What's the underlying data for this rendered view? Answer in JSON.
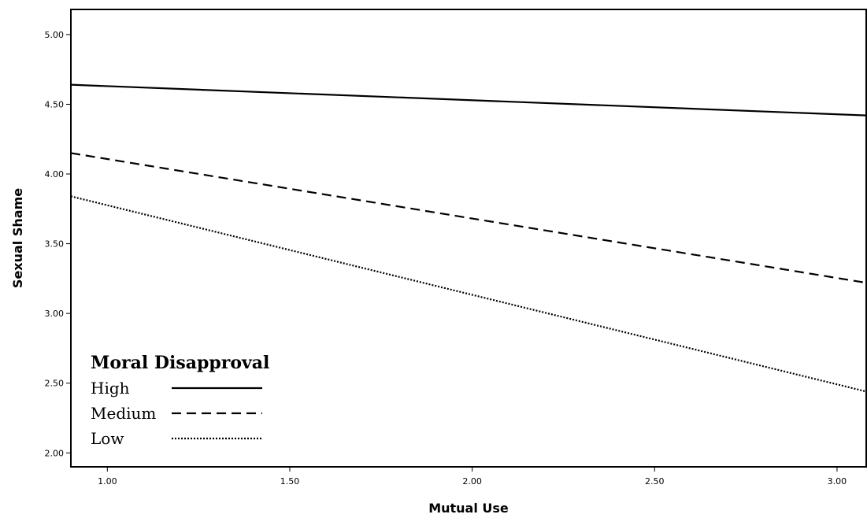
{
  "chart_data": {
    "type": "line",
    "title": "",
    "xlabel": "Mutual Use",
    "ylabel": "Sexual Shame",
    "xlim": [
      0.9,
      3.08
    ],
    "ylim": [
      1.9,
      5.18
    ],
    "x_ticks": [
      "1.00",
      "1.50",
      "2.00",
      "2.50",
      "3.00"
    ],
    "x_tick_values": [
      1.0,
      1.5,
      2.0,
      2.5,
      3.0
    ],
    "y_ticks": [
      "2.00",
      "2.50",
      "3.00",
      "3.50",
      "4.00",
      "4.50",
      "5.00"
    ],
    "y_tick_values": [
      2.0,
      2.5,
      3.0,
      3.5,
      4.0,
      4.5,
      5.0
    ],
    "grid": false,
    "legend": {
      "title": "Moral Disapproval",
      "position": "bottom-left"
    },
    "series": [
      {
        "name": "High",
        "style": "solid",
        "x": [
          0.9,
          3.08
        ],
        "y": [
          4.64,
          4.42
        ]
      },
      {
        "name": "Medium",
        "style": "dashed",
        "x": [
          0.9,
          3.08
        ],
        "y": [
          4.15,
          3.22
        ]
      },
      {
        "name": "Low",
        "style": "dotted",
        "x": [
          0.9,
          3.08
        ],
        "y": [
          3.84,
          2.44
        ]
      }
    ]
  }
}
